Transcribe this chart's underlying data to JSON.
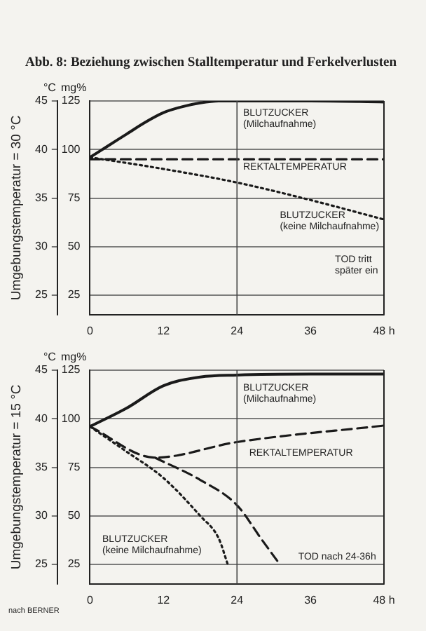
{
  "chart_data": [
    {
      "type": "line",
      "title": "Abb. 8: Beziehung zwischen Stalltemperatur und Ferkelverlusten",
      "ylabel": "°C",
      "y2label": "mg%",
      "xlim": [
        0,
        48
      ],
      "xticks": [
        0,
        12,
        24,
        36,
        {
          "value": 48,
          "label": "48 h"
        }
      ],
      "ylim": [
        23,
        45
      ],
      "yticks": [
        25,
        30,
        35,
        40,
        45
      ],
      "y2lim": [
        15,
        125
      ],
      "y2ticks": [
        25,
        50,
        75,
        100,
        125
      ],
      "grid": "y",
      "legend": false,
      "marker": "none",
      "ref_lines": [
        {
          "axis": "x",
          "value": 24
        }
      ],
      "series": [
        {
          "color": "#1a1a1a",
          "axis": "y2",
          "line_style": "solid",
          "x": [
            0,
            3,
            6,
            9,
            12,
            15,
            18,
            21,
            24,
            36,
            48
          ],
          "values": [
            96,
            102,
            108,
            114,
            119,
            122,
            124,
            125,
            125,
            125,
            124.5
          ]
        },
        {
          "color": "#1a1a1a",
          "axis": "y",
          "line_style": "dashed",
          "x": [
            0,
            48
          ],
          "values": [
            39,
            39
          ]
        },
        {
          "color": "#1a1a1a",
          "axis": "y2",
          "line_style": "dotted",
          "x": [
            0,
            12,
            24,
            36,
            48
          ],
          "values": [
            96,
            90,
            83,
            74,
            64
          ]
        }
      ],
      "annotations": [
        "Umgebungstemperatur = 30 °C",
        "BLUTZUCKER\n(Milchaufnahme)",
        "REKTALTEMPERATUR",
        "BLUTZUCKER\n(keine Milchaufnahme)",
        "TOD tritt\nspäter ein"
      ]
    },
    {
      "type": "line",
      "ylabel": "°C",
      "y2label": "mg%",
      "xlim": [
        0,
        48
      ],
      "xticks": [
        0,
        12,
        24,
        36,
        {
          "value": 48,
          "label": "48 h"
        }
      ],
      "ylim": [
        23,
        45
      ],
      "yticks": [
        25,
        30,
        35,
        40,
        45
      ],
      "y2lim": [
        15,
        125
      ],
      "y2ticks": [
        25,
        50,
        75,
        100,
        125
      ],
      "grid": "y",
      "legend": false,
      "marker": "none",
      "ref_lines": [
        {
          "axis": "x",
          "value": 24
        }
      ],
      "series": [
        {
          "color": "#1a1a1a",
          "axis": "y2",
          "line_style": "solid",
          "x": [
            0,
            6,
            12,
            18,
            24,
            36,
            48
          ],
          "values": [
            96,
            105.5,
            117,
            121.5,
            122.5,
            123,
            123
          ]
        },
        {
          "color": "#1a1a1a",
          "axis": "y",
          "line_style": "dashed",
          "x": [
            0,
            10.6,
            24,
            48
          ],
          "values": [
            39.2,
            36,
            37.6,
            39.3
          ]
        },
        {
          "color": "#1a1a1a",
          "axis": "y",
          "line_style": "dashed",
          "x": [
            10.6,
            18,
            24,
            28,
            31
          ],
          "values": [
            36,
            33.7,
            31.1,
            27.6,
            25
          ]
        },
        {
          "color": "#1a1a1a",
          "axis": "y2",
          "line_style": "dotted",
          "x": [
            0,
            6,
            12,
            18,
            21,
            22.5
          ],
          "values": [
            96,
            83,
            69.5,
            50,
            38.5,
            25
          ]
        }
      ],
      "annotations": [
        "Umgebungstemperatur = 15 °C",
        "nach BERNER",
        "BLUTZUCKER\n(Milchaufnahme)",
        "REKTALTEMPERATUR",
        "BLUTZUCKER\n(keine Milchaufnahme)",
        "TOD nach 24-36h"
      ]
    }
  ]
}
